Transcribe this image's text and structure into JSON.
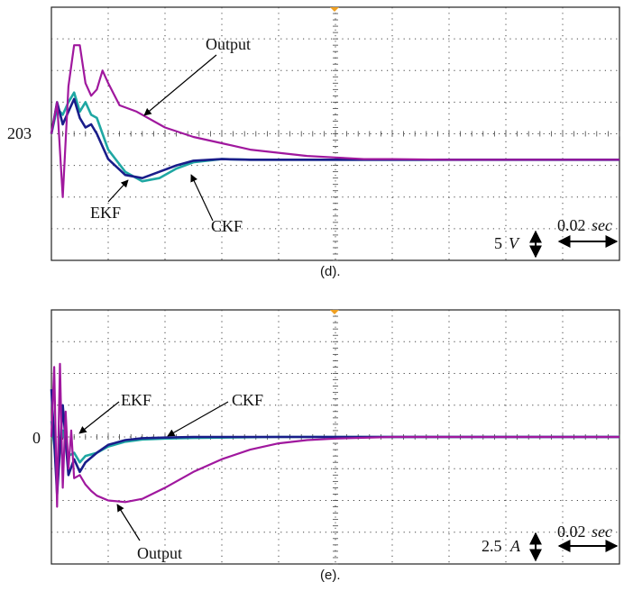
{
  "colors": {
    "output": "#a0189e",
    "ekf": "#1fa7a3",
    "ckf": "#1a1d8a",
    "grid": "#444444",
    "trigger": "#f0a020"
  },
  "chart_data": [
    {
      "type": "line",
      "caption": "(d).",
      "y_marker": "203",
      "annotations": [
        "Output",
        "EKF",
        "CKF"
      ],
      "scale": {
        "volt_div_value": "5",
        "volt_div_unit": "V",
        "time_div_value": "0.02",
        "time_div_unit": "sec"
      },
      "grid": true,
      "x_divisions": 10,
      "y_divisions": 8,
      "xlim": [
        0,
        10
      ],
      "ylim": [
        -4,
        4
      ],
      "series": [
        {
          "name": "Output",
          "x": [
            0,
            0.1,
            0.2,
            0.3,
            0.4,
            0.5,
            0.6,
            0.7,
            0.8,
            0.9,
            1.0,
            1.2,
            1.5,
            2.0,
            2.5,
            3.0,
            3.5,
            4.0,
            4.5,
            5.0,
            5.5,
            6.0,
            7.0,
            8.0,
            9.0,
            10.0
          ],
          "y": [
            0,
            1.0,
            -2.0,
            1.5,
            2.8,
            2.8,
            1.6,
            1.2,
            1.4,
            2.0,
            1.6,
            0.9,
            0.7,
            0.2,
            -0.1,
            -0.3,
            -0.5,
            -0.6,
            -0.7,
            -0.75,
            -0.8,
            -0.8,
            -0.82,
            -0.82,
            -0.82,
            -0.82
          ]
        },
        {
          "name": "EKF",
          "x": [
            0,
            0.1,
            0.2,
            0.3,
            0.4,
            0.5,
            0.6,
            0.7,
            0.8,
            0.9,
            1.0,
            1.3,
            1.6,
            1.9,
            2.2,
            2.5,
            3.0,
            3.5,
            4.0,
            5.0,
            6.0,
            8.0,
            10.0
          ],
          "y": [
            0,
            0.8,
            0.6,
            1.0,
            1.3,
            0.7,
            1.0,
            0.6,
            0.5,
            0.0,
            -0.5,
            -1.2,
            -1.5,
            -1.4,
            -1.1,
            -0.9,
            -0.8,
            -0.82,
            -0.82,
            -0.82,
            -0.82,
            -0.82,
            -0.82
          ]
        },
        {
          "name": "CKF",
          "x": [
            0,
            0.1,
            0.2,
            0.3,
            0.4,
            0.5,
            0.6,
            0.7,
            0.8,
            0.9,
            1.0,
            1.3,
            1.6,
            1.9,
            2.2,
            2.5,
            3.0,
            3.5,
            4.0,
            5.0,
            6.0,
            8.0,
            10.0
          ],
          "y": [
            0,
            1.0,
            0.3,
            0.7,
            1.1,
            0.5,
            0.2,
            0.3,
            0.0,
            -0.4,
            -0.8,
            -1.3,
            -1.4,
            -1.2,
            -1.0,
            -0.85,
            -0.8,
            -0.82,
            -0.82,
            -0.82,
            -0.82,
            -0.82,
            -0.82
          ]
        }
      ]
    },
    {
      "type": "line",
      "caption": "(e).",
      "y_marker": "0",
      "annotations": [
        "EKF",
        "CKF",
        "Output"
      ],
      "scale": {
        "volt_div_value": "2.5",
        "volt_div_unit": "A",
        "time_div_value": "0.02",
        "time_div_unit": "sec"
      },
      "grid": true,
      "x_divisions": 10,
      "y_divisions": 8,
      "xlim": [
        0,
        10
      ],
      "ylim": [
        -4,
        4
      ],
      "series": [
        {
          "name": "Output",
          "x": [
            0,
            0.05,
            0.1,
            0.15,
            0.2,
            0.25,
            0.3,
            0.35,
            0.4,
            0.5,
            0.6,
            0.7,
            0.8,
            1.0,
            1.3,
            1.6,
            2.0,
            2.5,
            3.0,
            3.5,
            4.0,
            4.5,
            5.0,
            6.0,
            7.0,
            8.0,
            10.0
          ],
          "y": [
            0,
            2.2,
            -2.2,
            2.3,
            -1.6,
            0.8,
            -1.0,
            0.2,
            -1.3,
            -1.2,
            -1.5,
            -1.7,
            -1.85,
            -2.0,
            -2.05,
            -1.95,
            -1.6,
            -1.1,
            -0.7,
            -0.4,
            -0.2,
            -0.1,
            -0.05,
            0,
            0,
            0,
            0
          ]
        },
        {
          "name": "EKF",
          "x": [
            0,
            0.1,
            0.2,
            0.3,
            0.4,
            0.5,
            0.6,
            0.8,
            1.0,
            1.3,
            1.6,
            2.0,
            2.5,
            3.0,
            4.0,
            5.0,
            7.0,
            10.0
          ],
          "y": [
            0.5,
            -1.0,
            0.2,
            -0.6,
            -0.5,
            -0.8,
            -0.6,
            -0.5,
            -0.3,
            -0.15,
            -0.08,
            -0.05,
            -0.03,
            -0.02,
            0,
            0,
            0,
            0
          ]
        },
        {
          "name": "CKF",
          "x": [
            0,
            0.1,
            0.2,
            0.3,
            0.4,
            0.5,
            0.6,
            0.8,
            1.0,
            1.3,
            1.6,
            2.0,
            2.5,
            3.0,
            4.0,
            5.0,
            7.0,
            10.0
          ],
          "y": [
            1.5,
            -1.8,
            1.0,
            -1.2,
            -0.7,
            -1.1,
            -0.8,
            -0.5,
            -0.25,
            -0.1,
            -0.04,
            -0.02,
            0,
            0,
            0,
            0,
            0,
            0
          ]
        }
      ]
    }
  ]
}
